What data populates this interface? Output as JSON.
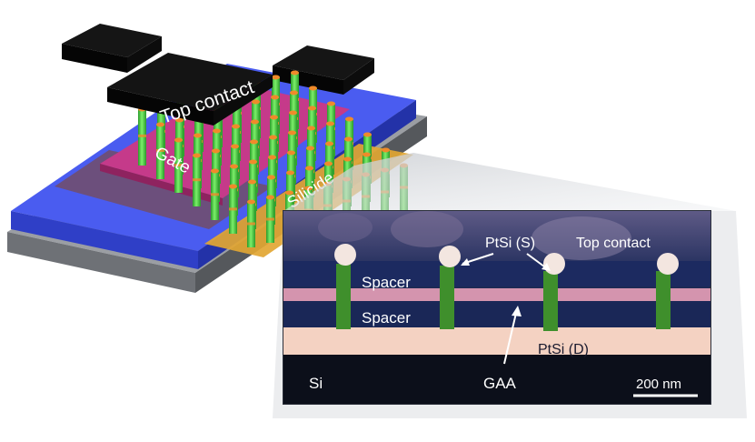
{
  "device_labels": {
    "top_contact": "Top contact",
    "gate": "Gate",
    "silicide": "Silicide"
  },
  "sem_labels": {
    "ptsi_s": "PtSi (S)",
    "top_contact": "Top contact",
    "spacer_upper": "Spacer",
    "spacer_lower": "Spacer",
    "ptsi_d": "PtSi (D)",
    "si": "Si",
    "gaa": "GAA",
    "scale_bar": "200 nm"
  },
  "colors": {
    "oxide_blue": "#4a5cf0",
    "contact_black": "#121212",
    "gate_magenta": "#c53a8a",
    "nanowire_green": "#4fd84a",
    "nanowire_tip_orange": "#f08a2a",
    "silicide_gold": "#e2a633",
    "substrate_gray": "#8c8f93",
    "sem_background": "#1e2a55",
    "pink_layer": "#e8a0b8",
    "ptsi_layer": "#f4d2c2"
  }
}
